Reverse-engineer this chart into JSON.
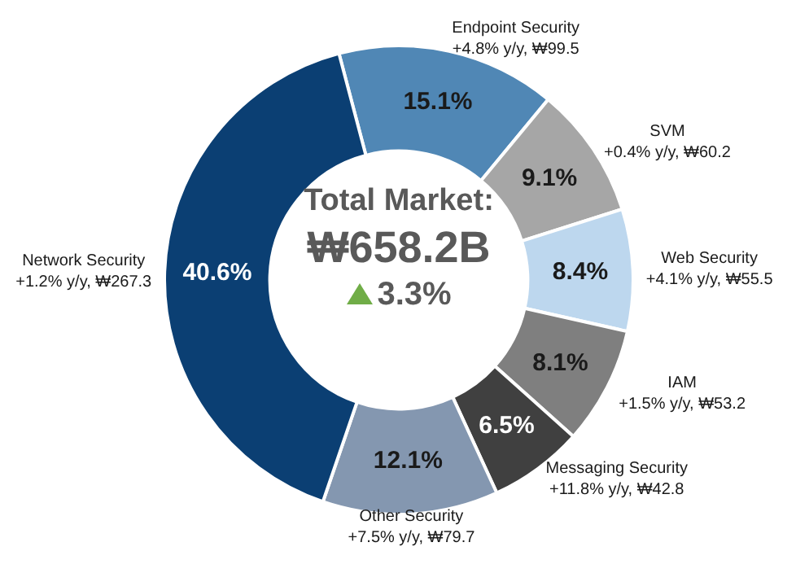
{
  "chart_data": {
    "type": "donut",
    "categories": [
      "Endpoint Security",
      "SVM",
      "Web Security",
      "IAM",
      "Messaging Security",
      "Other Security",
      "Network Security"
    ],
    "values": [
      15.1,
      9.1,
      8.4,
      8.1,
      6.5,
      12.1,
      40.6
    ],
    "colors": [
      "#5087b5",
      "#a6a6a6",
      "#bdd7ee",
      "#7f7f7f",
      "#404040",
      "#8497b0",
      "#0b3f73"
    ],
    "value_labels": [
      "15.1%",
      "9.1%",
      "8.4%",
      "8.1%",
      "6.5%",
      "12.1%",
      "40.6%"
    ],
    "annotations": [
      "Total Market:",
      "₩658.2B",
      "3.3%",
      {
        "text": "+4.8% y/y, ₩99.5",
        "x": "Endpoint Security"
      },
      {
        "text": "+0.4% y/y, ₩60.2",
        "x": "SVM"
      },
      {
        "text": "+4.1% y/y, ₩55.5",
        "x": "Web Security"
      },
      {
        "text": "+1.5% y/y, ₩53.2",
        "x": "IAM"
      },
      {
        "text": "+11.8% y/y, ₩42.8",
        "x": "Messaging Security"
      },
      {
        "text": "+7.5% y/y, ₩79.7",
        "x": "Other Security"
      },
      {
        "text": "+1.2% y/y, ₩267.3",
        "x": "Network Security"
      }
    ],
    "legend": false
  }
}
